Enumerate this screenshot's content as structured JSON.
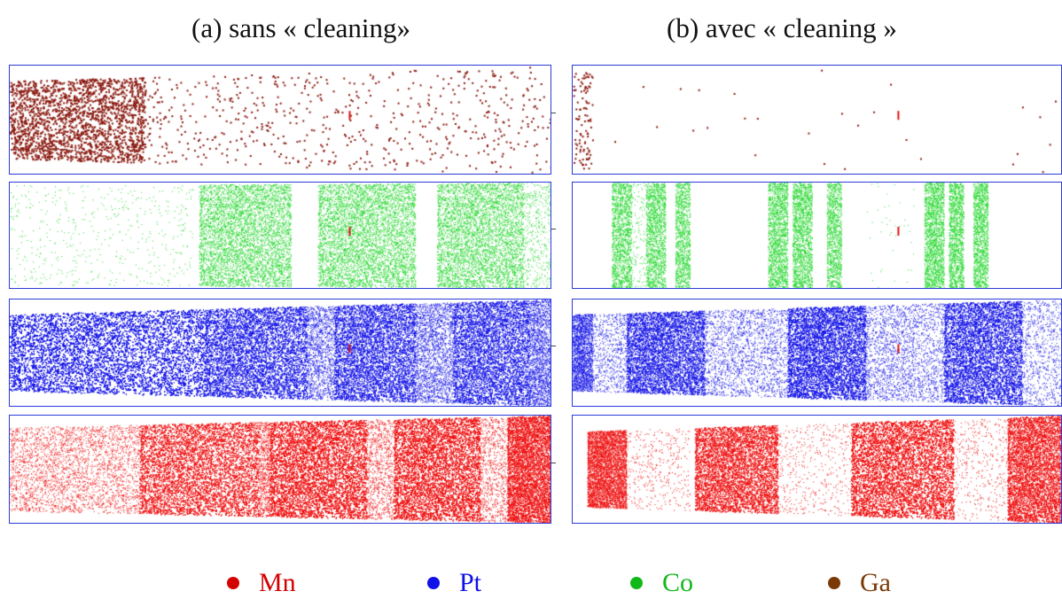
{
  "titles": {
    "left": "(a) sans « cleaning»",
    "right": "(b) avec « cleaning »"
  },
  "legend": [
    {
      "label": "Mn",
      "color": "#d40000"
    },
    {
      "label": "Pt",
      "color": "#1010e8"
    },
    {
      "label": "Co",
      "color": "#12b81a"
    },
    {
      "label": "Ga",
      "color": "#7a3a08"
    }
  ],
  "maps": [
    {
      "column": "left",
      "element": "Ga",
      "color": "#8b1a10"
    },
    {
      "column": "left",
      "element": "Co",
      "color": "#22d62a"
    },
    {
      "column": "left",
      "element": "Pt",
      "color": "#1414e6"
    },
    {
      "column": "left",
      "element": "Mn",
      "color": "#ee1010"
    },
    {
      "column": "right",
      "element": "Ga",
      "color": "#8b1a10"
    },
    {
      "column": "right",
      "element": "Co",
      "color": "#22d62a"
    },
    {
      "column": "right",
      "element": "Pt",
      "color": "#1414e6"
    },
    {
      "column": "right",
      "element": "Mn",
      "color": "#ee1010"
    }
  ]
}
